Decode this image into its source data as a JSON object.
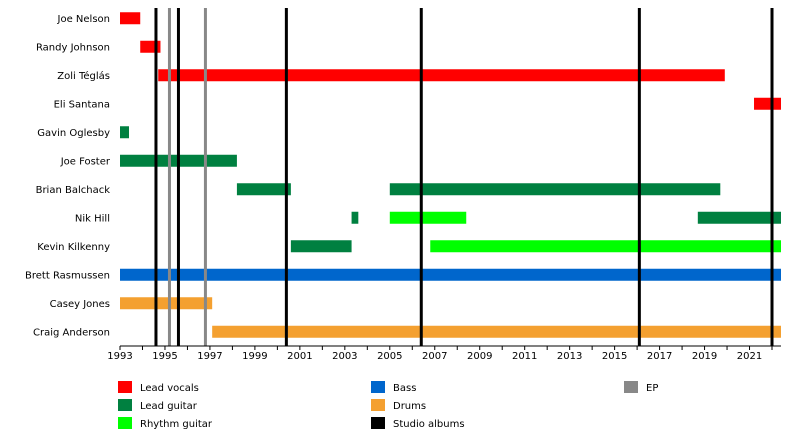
{
  "chart_data": {
    "type": "timeline",
    "x_axis": {
      "range": [
        1993,
        2022.4
      ],
      "tick_labels": [
        "1993",
        "1995",
        "1997",
        "1999",
        "2001",
        "2003",
        "2005",
        "2007",
        "2009",
        "2011",
        "2013",
        "2015",
        "2017",
        "2019",
        "2021"
      ],
      "minor_step": 1
    },
    "roles": [
      {
        "key": "lead_vocals",
        "label": "Lead vocals",
        "color": "#ff0000"
      },
      {
        "key": "lead_guitar",
        "label": "Lead guitar",
        "color": "#008040"
      },
      {
        "key": "rhythm_guitar",
        "label": "Rhythm guitar",
        "color": "#00ff00"
      },
      {
        "key": "bass",
        "label": "Bass",
        "color": "#0066cc"
      },
      {
        "key": "drums",
        "label": "Drums",
        "color": "#f4a030"
      },
      {
        "key": "studio_albums",
        "label": "Studio albums",
        "color": "#000000"
      },
      {
        "key": "ep",
        "label": "EP",
        "color": "#888888"
      }
    ],
    "members": [
      {
        "name": "Joe Nelson",
        "periods": [
          {
            "role": "lead_vocals",
            "start": 1993.0,
            "end": 1993.9
          }
        ]
      },
      {
        "name": "Randy Johnson",
        "periods": [
          {
            "role": "lead_vocals",
            "start": 1993.9,
            "end": 1994.8
          }
        ]
      },
      {
        "name": "Zoli Téglás",
        "periods": [
          {
            "role": "lead_vocals",
            "start": 1994.7,
            "end": 2019.9
          }
        ]
      },
      {
        "name": "Eli Santana",
        "periods": [
          {
            "role": "lead_vocals",
            "start": 2021.2,
            "end": 2022.4
          }
        ]
      },
      {
        "name": "Gavin Oglesby",
        "periods": [
          {
            "role": "lead_guitar",
            "start": 1993.0,
            "end": 1993.4
          }
        ]
      },
      {
        "name": "Joe Foster",
        "periods": [
          {
            "role": "lead_guitar",
            "start": 1993.0,
            "end": 1998.2
          }
        ]
      },
      {
        "name": "Brian Balchack",
        "periods": [
          {
            "role": "lead_guitar",
            "start": 1998.2,
            "end": 2000.6
          },
          {
            "role": "lead_guitar",
            "start": 2005.0,
            "end": 2019.7
          }
        ]
      },
      {
        "name": "Nik Hill",
        "periods": [
          {
            "role": "lead_guitar",
            "start": 2003.3,
            "end": 2003.6
          },
          {
            "role": "rhythm_guitar",
            "start": 2005.0,
            "end": 2008.4
          },
          {
            "role": "lead_guitar",
            "start": 2018.7,
            "end": 2022.4
          }
        ]
      },
      {
        "name": "Kevin Kilkenny",
        "periods": [
          {
            "role": "lead_guitar",
            "start": 2000.6,
            "end": 2003.3
          },
          {
            "role": "rhythm_guitar",
            "start": 2006.8,
            "end": 2022.4
          }
        ]
      },
      {
        "name": "Brett Rasmussen",
        "periods": [
          {
            "role": "bass",
            "start": 1993.0,
            "end": 2022.4
          }
        ]
      },
      {
        "name": "Casey Jones",
        "periods": [
          {
            "role": "drums",
            "start": 1993.0,
            "end": 1997.1
          }
        ]
      },
      {
        "name": "Craig Anderson",
        "periods": [
          {
            "role": "drums",
            "start": 1997.1,
            "end": 2022.4
          }
        ]
      }
    ],
    "studio_albums": [
      1994.6,
      1995.6,
      2000.4,
      2006.4,
      2016.1,
      2022.0
    ],
    "eps": [
      1995.2,
      1996.8
    ]
  }
}
